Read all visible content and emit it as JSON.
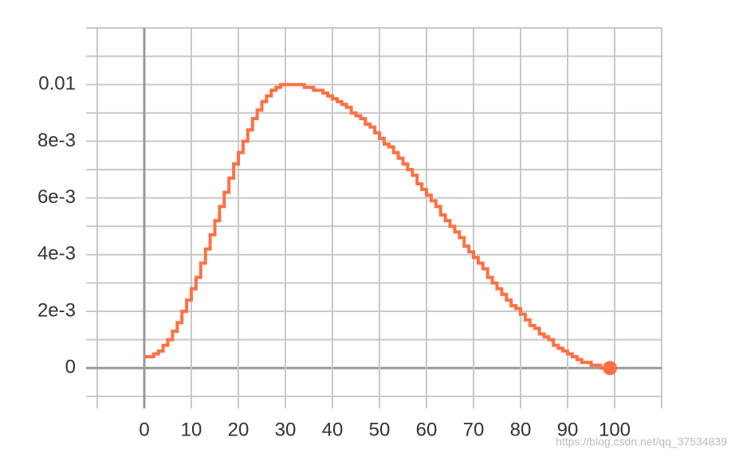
{
  "chart_data": {
    "type": "line",
    "step": true,
    "x": [
      0,
      1,
      2,
      3,
      4,
      5,
      6,
      7,
      8,
      9,
      10,
      11,
      12,
      13,
      14,
      15,
      16,
      17,
      18,
      19,
      20,
      21,
      22,
      23,
      24,
      25,
      26,
      27,
      28,
      29,
      30,
      31,
      32,
      33,
      34,
      35,
      36,
      37,
      38,
      39,
      40,
      41,
      42,
      43,
      44,
      45,
      46,
      47,
      48,
      49,
      50,
      51,
      52,
      53,
      54,
      55,
      56,
      57,
      58,
      59,
      60,
      61,
      62,
      63,
      64,
      65,
      66,
      67,
      68,
      69,
      70,
      71,
      72,
      73,
      74,
      75,
      76,
      77,
      78,
      79,
      80,
      81,
      82,
      83,
      84,
      85,
      86,
      87,
      88,
      89,
      90,
      91,
      92,
      93,
      94,
      95,
      96,
      97,
      98,
      99
    ],
    "series": [
      {
        "color": "#ff7043",
        "values": [
          0.0004,
          0.0004,
          0.0005,
          0.0006,
          0.0008,
          0.001,
          0.0013,
          0.0016,
          0.002,
          0.0024,
          0.0028,
          0.0032,
          0.0037,
          0.0042,
          0.0047,
          0.0052,
          0.0057,
          0.0062,
          0.0067,
          0.0072,
          0.0076,
          0.008,
          0.0084,
          0.0088,
          0.0091,
          0.0094,
          0.0096,
          0.0098,
          0.0099,
          0.01,
          0.01,
          0.01,
          0.01,
          0.01,
          0.0099,
          0.0099,
          0.0098,
          0.0098,
          0.0097,
          0.0096,
          0.0095,
          0.0094,
          0.0093,
          0.0092,
          0.009,
          0.0089,
          0.0088,
          0.0086,
          0.0085,
          0.0083,
          0.0081,
          0.0079,
          0.0078,
          0.0076,
          0.0074,
          0.0072,
          0.007,
          0.0068,
          0.0065,
          0.0063,
          0.0061,
          0.0059,
          0.0057,
          0.0054,
          0.0052,
          0.005,
          0.0048,
          0.0046,
          0.0043,
          0.0041,
          0.0039,
          0.0037,
          0.0035,
          0.0032,
          0.003,
          0.0028,
          0.0026,
          0.0024,
          0.0022,
          0.0021,
          0.0019,
          0.0017,
          0.0015,
          0.0014,
          0.0012,
          0.0011,
          0.001,
          0.0008,
          0.0007,
          0.0006,
          0.0005,
          0.0004,
          0.0003,
          0.0002,
          0.0002,
          0.0001,
          0.0001,
          0,
          0,
          0
        ]
      }
    ],
    "xlim": [
      -10,
      110
    ],
    "ylim": [
      -0.0012,
      0.012
    ],
    "xticks": [
      0,
      10,
      20,
      30,
      40,
      50,
      60,
      70,
      80,
      90,
      100
    ],
    "xticks_minor": [
      -10,
      110
    ],
    "yticks": [
      0,
      {
        "value": 0.002,
        "label": "2e-3"
      },
      {
        "value": 0.004,
        "label": "4e-3"
      },
      {
        "value": 0.006,
        "label": "6e-3"
      },
      {
        "value": 0.008,
        "label": "8e-3"
      },
      0.01
    ],
    "yticks_minor": [
      -0.001,
      0.001,
      0.003,
      0.005,
      0.007,
      0.009,
      0.011,
      0.012
    ],
    "grid": true,
    "watermark": "https://blog.csdn.net/qq_37534839"
  }
}
